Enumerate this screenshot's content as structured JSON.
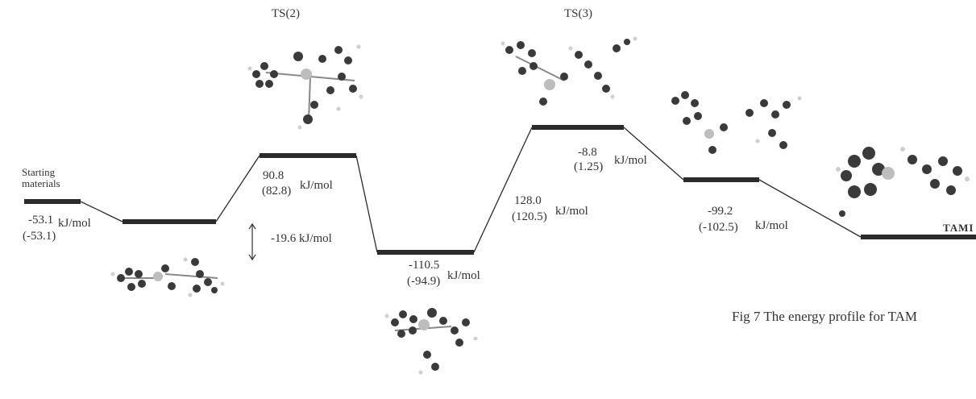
{
  "figure": {
    "caption": "Fig 7 The energy profile for TAM",
    "starting_label_line1": "Starting",
    "starting_label_line2": "materials",
    "product_label": "TAMI",
    "ts2_label": "TS(2)",
    "ts3_label": "TS(3)"
  },
  "levels": [
    {
      "id": "start",
      "value_text": "",
      "alt_text": "",
      "unit": ""
    },
    {
      "id": "complex",
      "value_text": "-53.1",
      "alt_text": "(-53.1)",
      "unit": "kJ/mol"
    },
    {
      "id": "ts2",
      "value_text": "90.8",
      "alt_text": "(82.8)",
      "unit": "kJ/mol"
    },
    {
      "id": "intermediate",
      "value_text": "-110.5",
      "alt_text": "(-94.9)",
      "unit": "kJ/mol"
    },
    {
      "id": "ts3",
      "value_text": "128.0",
      "alt_text": "(120.5)",
      "unit": "kJ/mol"
    },
    {
      "id": "post_ts3",
      "value_text": "-8.8",
      "alt_text": "(1.25)",
      "unit": "kJ/mol"
    },
    {
      "id": "prefinal",
      "value_text": "-99.2",
      "alt_text": "(-102.5)",
      "unit": "kJ/mol"
    },
    {
      "id": "product",
      "value_text": "",
      "alt_text": "",
      "unit": ""
    }
  ],
  "gap_annotation": "-19.6 kJ/mol",
  "colors": {
    "ink": "#2b2b2b",
    "atom_dark": "#3a3a3a",
    "atom_light": "#bdbdbd",
    "atom_h": "#e2e2e2"
  }
}
